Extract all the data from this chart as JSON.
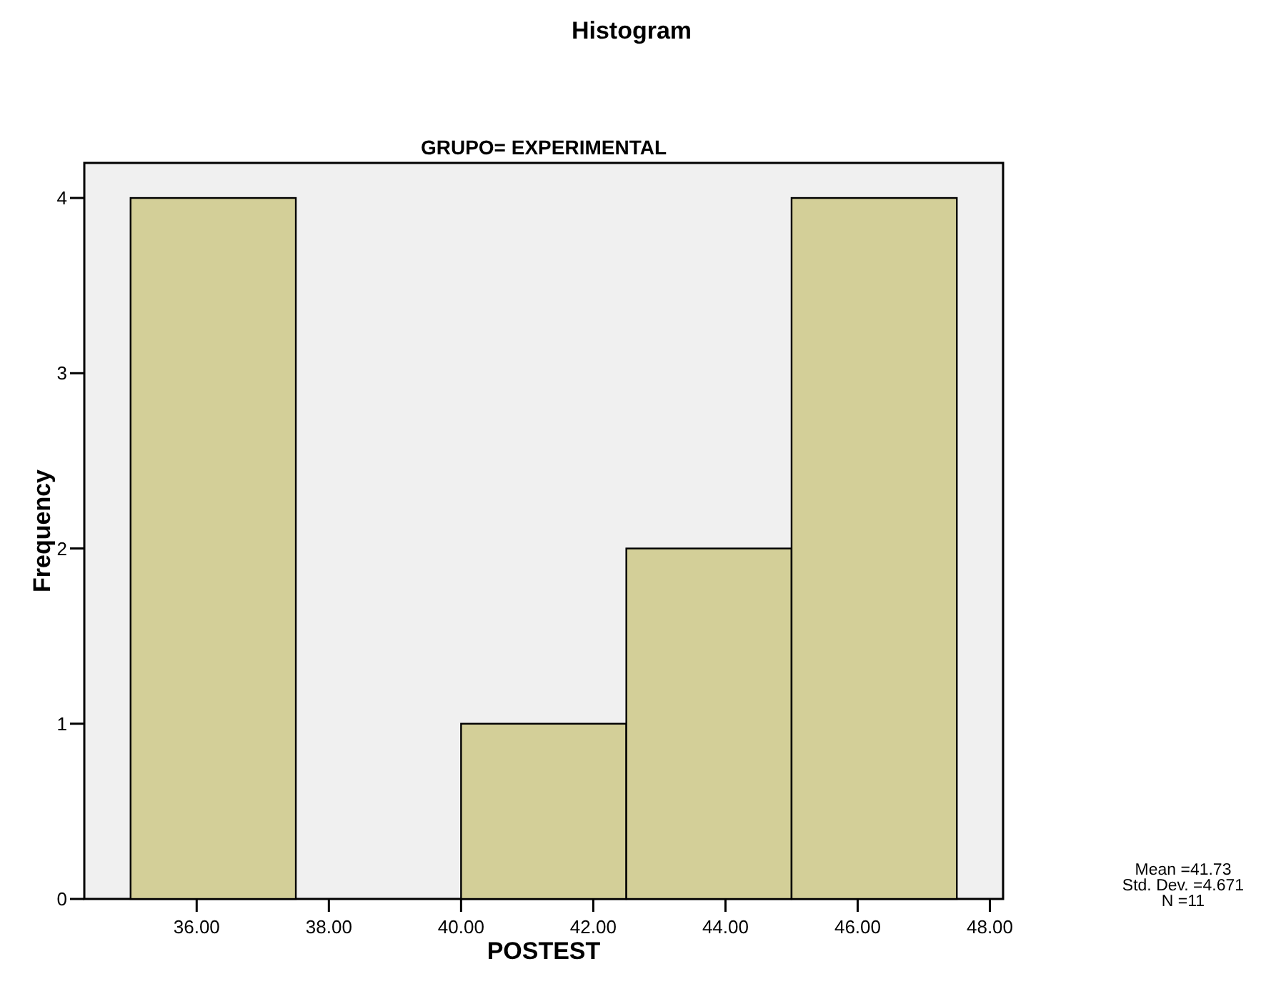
{
  "chart_data": {
    "type": "histogram",
    "title": "Histogram",
    "subtitle": "GRUPO= EXPERIMENTAL",
    "xlabel": "POSTEST",
    "ylabel": "Frequency",
    "bins": [
      35,
      37.5,
      40,
      42.5,
      45,
      47.5
    ],
    "values": [
      4,
      0,
      1,
      2,
      4
    ],
    "color": "#d3cf98",
    "xlim": [
      34.3,
      48.2
    ],
    "xticks": [
      {
        "value": 36,
        "label": "36.00"
      },
      {
        "value": 38,
        "label": "38.00"
      },
      {
        "value": 40,
        "label": "40.00"
      },
      {
        "value": 42,
        "label": "42.00"
      },
      {
        "value": 44,
        "label": "44.00"
      },
      {
        "value": 46,
        "label": "46.00"
      },
      {
        "value": 48,
        "label": "48.00"
      }
    ],
    "ylim": [
      0,
      4.2
    ],
    "yticks": [
      0,
      1,
      2,
      3,
      4
    ],
    "grid": false,
    "annotations": [
      "Mean =41.73",
      "Std. Dev. =4.671",
      "N =11"
    ]
  }
}
